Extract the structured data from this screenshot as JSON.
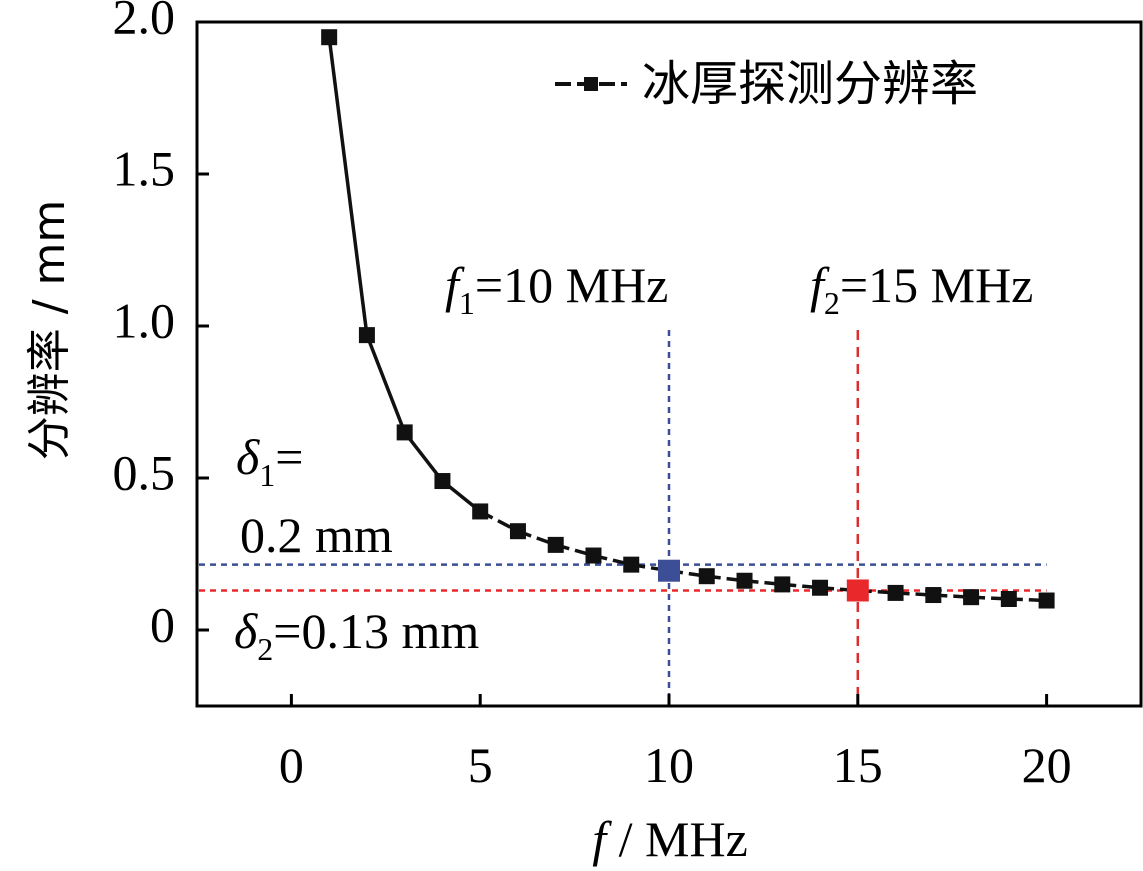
{
  "chart_data": {
    "type": "line",
    "title": "",
    "xlabel": {
      "var": "f",
      "unit": " / MHz"
    },
    "ylabel": "分辨率 / mm",
    "xlim": [
      -2.5,
      22.5
    ],
    "ylim": [
      -0.25,
      2.0
    ],
    "xticks": [
      0,
      5,
      10,
      15,
      20
    ],
    "xtick_labels": [
      "0",
      "5",
      "10",
      "15",
      "20"
    ],
    "yticks": [
      0,
      0.5,
      1.0,
      1.5,
      2.0
    ],
    "ytick_labels": [
      "0",
      "0.5",
      "1.0",
      "1.5",
      "2.0"
    ],
    "grid": false,
    "legend": {
      "position": "top-right"
    },
    "series": [
      {
        "name": "冰厚探测分辨率",
        "color": "#111111",
        "x": [
          1,
          2,
          3,
          4,
          5,
          6,
          7,
          8,
          9,
          10,
          11,
          12,
          13,
          14,
          15,
          16,
          17,
          18,
          19,
          20
        ],
        "y": [
          1.95,
          0.97,
          0.65,
          0.49,
          0.39,
          0.325,
          0.28,
          0.245,
          0.215,
          0.195,
          0.177,
          0.162,
          0.15,
          0.139,
          0.13,
          0.122,
          0.115,
          0.108,
          0.102,
          0.097
        ]
      }
    ],
    "highlights": [
      {
        "x": 10,
        "y": 0.195,
        "color": "#3b4e96"
      },
      {
        "x": 15,
        "y": 0.13,
        "color": "#e8282b"
      }
    ],
    "reference_lines": [
      {
        "orientation": "vertical",
        "value": 10,
        "color": "#3b4e96"
      },
      {
        "orientation": "vertical",
        "value": 15,
        "color": "#d9302f"
      },
      {
        "orientation": "horizontal",
        "value": 0.215,
        "color": "#3b4e96"
      },
      {
        "orientation": "horizontal",
        "value": 0.13,
        "color": "#e8282b"
      }
    ],
    "annotations": [
      {
        "id": "f1",
        "var": "f",
        "sub": "1",
        "rest": "=10 MHz"
      },
      {
        "id": "f2",
        "var": "f",
        "sub": "2",
        "rest": "=15 MHz"
      },
      {
        "id": "delta1",
        "var": "δ",
        "sub": "1",
        "rest": "=",
        "line2": "0.2 mm"
      },
      {
        "id": "delta2",
        "var": "δ",
        "sub": "2",
        "rest": "=0.13 mm"
      }
    ]
  }
}
